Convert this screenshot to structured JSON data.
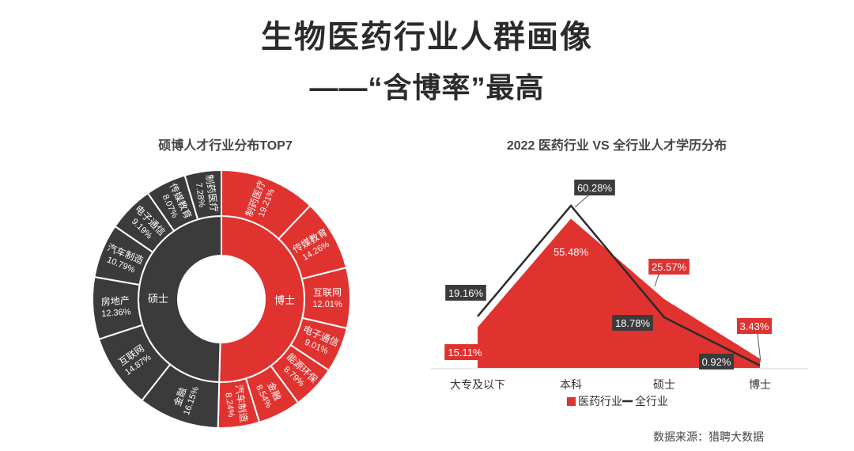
{
  "page": {
    "title_line1": "生物医药行业人群画像",
    "title_line2": "——“含博率”最高",
    "source": "数据来源：猎聘大数据"
  },
  "colors": {
    "red": "#e03330",
    "dark": "#3b3b3b",
    "line": "#2b2b2b"
  },
  "chart_data": [
    {
      "type": "sunburst",
      "title": "硕博人才行业分布TOP7",
      "groups": [
        {
          "name": "博士",
          "color": "#e03330",
          "items": [
            {
              "label": "制药医疗",
              "value": 19.21
            },
            {
              "label": "传媒教育",
              "value": 14.26
            },
            {
              "label": "互联网",
              "value": 12.01
            },
            {
              "label": "电子通信",
              "value": 9.01
            },
            {
              "label": "能源环保",
              "value": 8.79
            },
            {
              "label": "金融",
              "value": 8.54
            },
            {
              "label": "汽车制造",
              "value": 8.24
            }
          ]
        },
        {
          "name": "硕士",
          "color": "#3b3b3b",
          "items": [
            {
              "label": "金融",
              "value": 16.15
            },
            {
              "label": "互联网",
              "value": 14.87
            },
            {
              "label": "房地产",
              "value": 12.36
            },
            {
              "label": "汽车制造",
              "value": 10.79
            },
            {
              "label": "电子通信",
              "value": 9.19
            },
            {
              "label": "传媒教育",
              "value": 8.07
            },
            {
              "label": "制药医疗",
              "value": 7.28
            }
          ]
        }
      ]
    },
    {
      "type": "area",
      "title": "2022 医药行业 VS 全行业人才学历分布",
      "categories": [
        "大专及以下",
        "本科",
        "硕士",
        "博士"
      ],
      "series": [
        {
          "name": "医药行业",
          "kind": "area",
          "values": [
            15.11,
            55.48,
            25.57,
            3.43
          ]
        },
        {
          "name": "全行业",
          "kind": "line",
          "values": [
            19.16,
            60.28,
            18.78,
            0.92
          ]
        }
      ]
    }
  ]
}
